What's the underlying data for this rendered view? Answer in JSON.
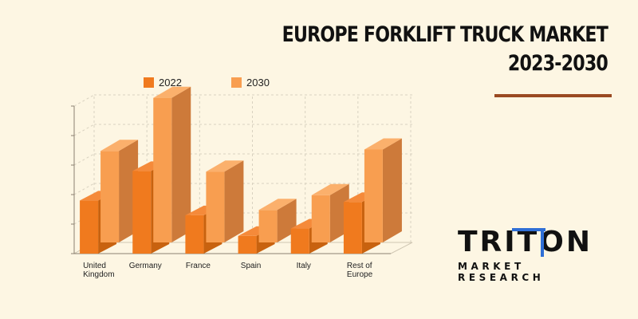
{
  "header": {
    "title_line1": "EUROPE FORKLIFT TRUCK MARKET",
    "title_line2": "2023-2030"
  },
  "logo": {
    "name": "TRITON",
    "tagline": "MARKET RESEARCH"
  },
  "colors": {
    "background": "#fdf6e3",
    "series_2022": "#f07a1e",
    "series_2030": "#f89e50",
    "accent_rule": "#9a4a22",
    "logo_blue": "#2f6fd6"
  },
  "chart_data": {
    "type": "bar",
    "title": "",
    "xlabel": "",
    "ylabel": "",
    "categories": [
      "United Kingdom",
      "Germany",
      "France",
      "Spain",
      "Italy",
      "Rest of Europe"
    ],
    "series": [
      {
        "name": "2022",
        "values": [
          1.8,
          2.8,
          1.3,
          0.6,
          0.85,
          1.75
        ]
      },
      {
        "name": "2030",
        "values": [
          3.1,
          4.9,
          2.4,
          1.1,
          1.6,
          3.15
        ]
      }
    ],
    "ylim": [
      0,
      5
    ],
    "grid": true,
    "legend_position": "top-left",
    "style": "3d"
  }
}
